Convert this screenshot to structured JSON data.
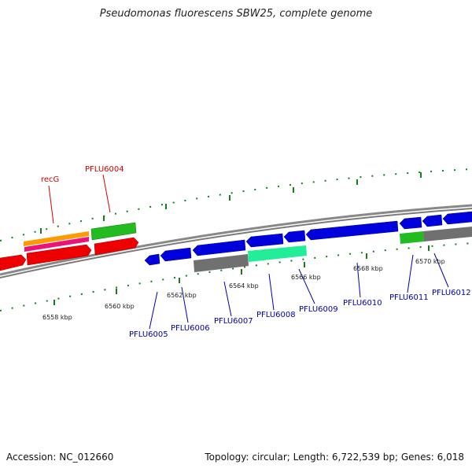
{
  "title": "Pseudomonas fluorescens SBW25, complete genome",
  "footer": {
    "accession": "Accession: NC_012660",
    "summary": "Topology: circular; Length: 6,722,539 bp; Genes: 6,018"
  },
  "colors": {
    "forward_gene": "#ee0000",
    "reverse_gene": "#0000dd",
    "forward_label": "#cc0000",
    "reverse_label": "#0000aa",
    "green_feature": "#22bb22",
    "orange_feature": "#ff9900",
    "pink_feature": "#ee1177",
    "gray_feature": "#707070",
    "mint_feature": "#22ee99",
    "tick": "#1a7a1a",
    "backbone": "#888888"
  },
  "scale_labels": [
    "6558 kbp",
    "6560 kbp",
    "6562 kbp",
    "6564 kbp",
    "6566 kbp",
    "6568 kbp",
    "6570 kbp"
  ],
  "forward_gene_labels": [
    "recG",
    "PFLU6004"
  ],
  "reverse_gene_labels": [
    "PFLU6005",
    "PFLU6006",
    "PFLU6007",
    "PFLU6008",
    "PFLU6009",
    "PFLU6010",
    "PFLU6011",
    "PFLU6012"
  ]
}
